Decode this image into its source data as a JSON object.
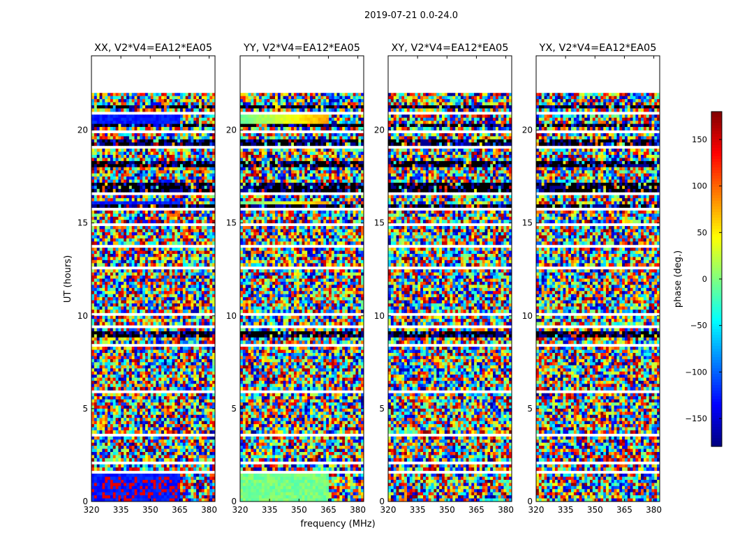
{
  "figure": {
    "suptitle": "2019-07-21 0.0-24.0",
    "xlabel": "frequency (MHz)",
    "ylabel": "UT (hours)",
    "colorbar_label": "phase (deg.)"
  },
  "chart_data": {
    "type": "heatmap",
    "colormap": "jet",
    "panels": [
      {
        "title": "XX, V2*V4=EA12*EA05",
        "mode": "xx"
      },
      {
        "title": "YY, V2*V4=EA12*EA05",
        "mode": "yy"
      },
      {
        "title": "XY, V2*V4=EA12*EA05",
        "mode": "noise"
      },
      {
        "title": "YX, V2*V4=EA12*EA05",
        "mode": "noise"
      }
    ],
    "x_ticks": [
      "320",
      "335",
      "350",
      "365",
      "380"
    ],
    "x_tick_values": [
      320,
      335,
      350,
      365,
      380
    ],
    "xlim": [
      320,
      383
    ],
    "y_ticks": [
      "0",
      "5",
      "10",
      "15",
      "20"
    ],
    "y_tick_values": [
      0,
      5,
      10,
      15,
      20
    ],
    "ylim": [
      0,
      24
    ],
    "data_end_hour": 22.0,
    "colorbar_ticks": [
      "150",
      "100",
      "50",
      "0",
      "−50",
      "−100",
      "−150"
    ],
    "colorbar_tick_values": [
      150,
      100,
      50,
      0,
      -50,
      -100,
      -150
    ],
    "colorbar_range": [
      -180,
      180
    ],
    "gap_bands_hours": [
      [
        1.5,
        1.75
      ],
      [
        2.05,
        2.15
      ],
      [
        3.45,
        3.6
      ],
      [
        4.6,
        4.75
      ],
      [
        5.9,
        6.0
      ],
      [
        7.1,
        7.2
      ],
      [
        8.4,
        8.5
      ],
      [
        9.3,
        9.45
      ],
      [
        10.05,
        10.15
      ],
      [
        11.3,
        11.4
      ],
      [
        12.5,
        12.6
      ],
      [
        13.7,
        13.8
      ],
      [
        14.9,
        15.0
      ],
      [
        15.6,
        15.75
      ],
      [
        16.5,
        16.6
      ],
      [
        17.8,
        17.9
      ],
      [
        19.0,
        19.1
      ],
      [
        19.8,
        19.95
      ],
      [
        20.9,
        21.0
      ]
    ],
    "dark_bands_hours": [
      [
        8.8,
        9.2
      ],
      [
        15.75,
        16.0
      ],
      [
        16.6,
        17.2
      ],
      [
        18.0,
        18.3
      ],
      [
        19.2,
        19.5
      ],
      [
        20.2,
        20.4
      ],
      [
        21.2,
        21.4
      ]
    ]
  }
}
